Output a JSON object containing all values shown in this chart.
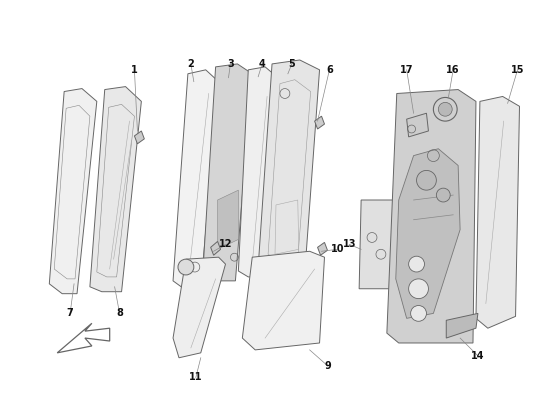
{
  "background_color": "#ffffff",
  "line_color": "#666666",
  "label_color": "#111111",
  "label_fontsize": 7,
  "title": ""
}
